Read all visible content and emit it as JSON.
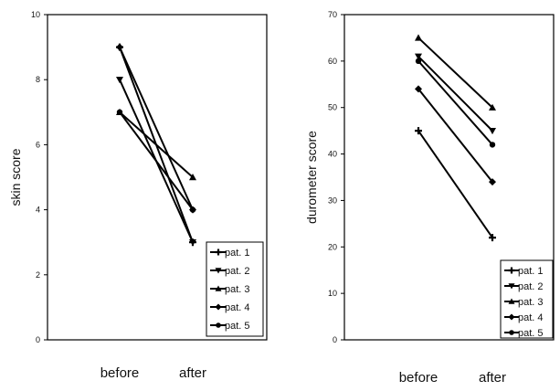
{
  "chart_data": [
    {
      "type": "line",
      "xlabel": "",
      "ylabel": "skin score",
      "categories": [
        "before",
        "after"
      ],
      "ylim": [
        0,
        10
      ],
      "yticks": [
        "0",
        "2",
        "4",
        "6",
        "8",
        "10"
      ],
      "legend_position": "bottom-right",
      "series": [
        {
          "name": "pat. 1",
          "marker": "diamond-cross",
          "values": [
            9,
            3
          ]
        },
        {
          "name": "pat. 2",
          "marker": "triangle-down",
          "values": [
            8,
            3
          ]
        },
        {
          "name": "pat. 3",
          "marker": "triangle-up",
          "values": [
            7,
            5
          ]
        },
        {
          "name": "pat. 4",
          "marker": "diamond",
          "values": [
            9,
            4
          ]
        },
        {
          "name": "pat. 5",
          "marker": "circle",
          "values": [
            7,
            4
          ]
        }
      ]
    },
    {
      "type": "line",
      "xlabel": "",
      "ylabel": "durometer score",
      "categories": [
        "before",
        "after"
      ],
      "ylim": [
        0,
        70
      ],
      "yticks": [
        "0",
        "10",
        "20",
        "30",
        "40",
        "50",
        "60",
        "70"
      ],
      "legend_position": "bottom-right",
      "series": [
        {
          "name": "pat. 1",
          "marker": "diamond-cross",
          "values": [
            45,
            22
          ]
        },
        {
          "name": "pat. 2",
          "marker": "triangle-down",
          "values": [
            61,
            45
          ]
        },
        {
          "name": "pat. 3",
          "marker": "triangle-up",
          "values": [
            65,
            50
          ]
        },
        {
          "name": "pat. 4",
          "marker": "diamond",
          "values": [
            54,
            34
          ]
        },
        {
          "name": "pat. 5",
          "marker": "circle",
          "values": [
            60,
            42
          ]
        }
      ]
    }
  ]
}
